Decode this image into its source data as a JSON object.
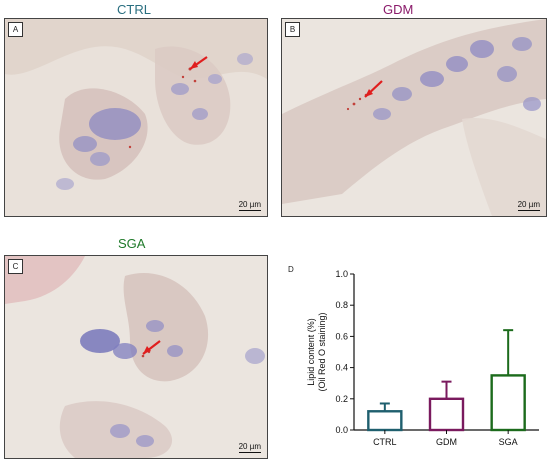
{
  "panels": [
    {
      "letter": "A",
      "title": "CTRL",
      "scale_label": "20 µm",
      "title_color": "#2a6f80"
    },
    {
      "letter": "B",
      "title": "GDM",
      "scale_label": "20 µm",
      "title_color": "#8a1a6a"
    },
    {
      "letter": "C",
      "title": "SGA",
      "scale_label": "20 µm",
      "title_color": "#1f7a2a"
    }
  ],
  "chart_letter": "D",
  "chart_data": {
    "type": "bar",
    "categories": [
      "CTRL",
      "GDM",
      "SGA"
    ],
    "values": [
      0.12,
      0.2,
      0.35
    ],
    "errors": [
      0.05,
      0.11,
      0.29
    ],
    "colors": [
      "#1f5f6e",
      "#7a1a5e",
      "#1c6b1c"
    ],
    "ylabel_line1": "Lipid content (%)",
    "ylabel_line2": "(Oil Red O staining)",
    "ylim": [
      0,
      1.0
    ],
    "yticks": [
      "0.0",
      "0.2",
      "0.4",
      "0.6",
      "0.8",
      "1.0"
    ]
  }
}
